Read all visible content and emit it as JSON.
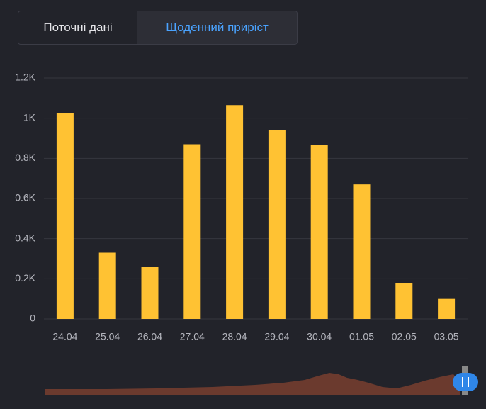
{
  "tabs": [
    "Поточні дані",
    "Щоденний приріст"
  ],
  "chart_data": {
    "type": "bar",
    "categories": [
      "24.04",
      "25.04",
      "26.04",
      "27.04",
      "28.04",
      "29.04",
      "30.04",
      "01.05",
      "02.05",
      "03.05"
    ],
    "values": [
      1025,
      330,
      258,
      870,
      1065,
      940,
      865,
      670,
      180,
      100
    ],
    "color": "#ffc233",
    "ylim": [
      0,
      1200
    ],
    "yticks": [
      0,
      {
        "value": 200,
        "label": "0.2K"
      },
      {
        "value": 400,
        "label": "0.4K"
      },
      {
        "value": 600,
        "label": "0.6K"
      },
      {
        "value": 800,
        "label": "0.8K"
      },
      {
        "value": 1000,
        "label": "1K"
      },
      {
        "value": 1200,
        "label": "1.2K"
      }
    ],
    "grid": true
  }
}
